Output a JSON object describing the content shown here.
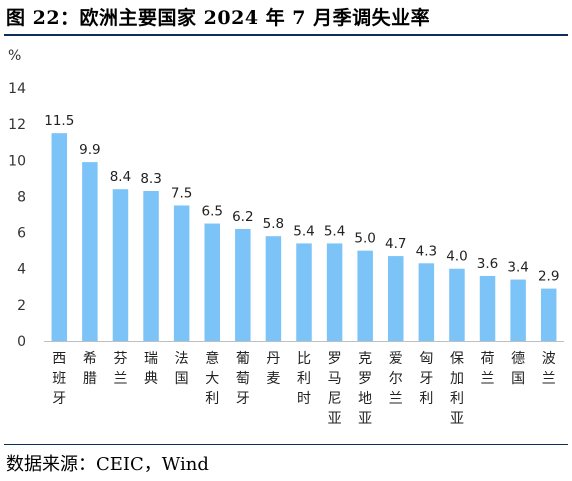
{
  "header": {
    "title": "图 22：欧洲主要国家 2024 年 7 月季调失业率"
  },
  "footer": {
    "source": "数据来源：CEIC，Wind"
  },
  "chart_data": {
    "type": "bar",
    "unit": "%",
    "categories": [
      "西班牙",
      "希腊",
      "芬兰",
      "瑞典",
      "法国",
      "意大利",
      "葡萄牙",
      "丹麦",
      "比利时",
      "罗马尼亚",
      "克罗地亚",
      "爱尔兰",
      "匈牙利",
      "保加利亚",
      "荷兰",
      "德国",
      "波兰"
    ],
    "values": [
      11.5,
      9.9,
      8.4,
      8.3,
      7.5,
      6.5,
      6.2,
      5.8,
      5.4,
      5.4,
      5.0,
      4.7,
      4.3,
      4.0,
      3.6,
      3.4,
      2.9
    ],
    "value_labels": [
      "11.5",
      "9.9",
      "8.4",
      "8.3",
      "7.5",
      "6.5",
      "6.2",
      "5.8",
      "5.4",
      "5.4",
      "5.0",
      "4.7",
      "4.3",
      "4.0",
      "3.6",
      "3.4",
      "2.9"
    ],
    "yticks": [
      0,
      2,
      4,
      6,
      8,
      10,
      12,
      14
    ],
    "ylim": [
      0,
      14
    ],
    "grid": false,
    "legend": false,
    "bar_color": "#7cc4f8",
    "axis_color": "#bfbfbf"
  }
}
